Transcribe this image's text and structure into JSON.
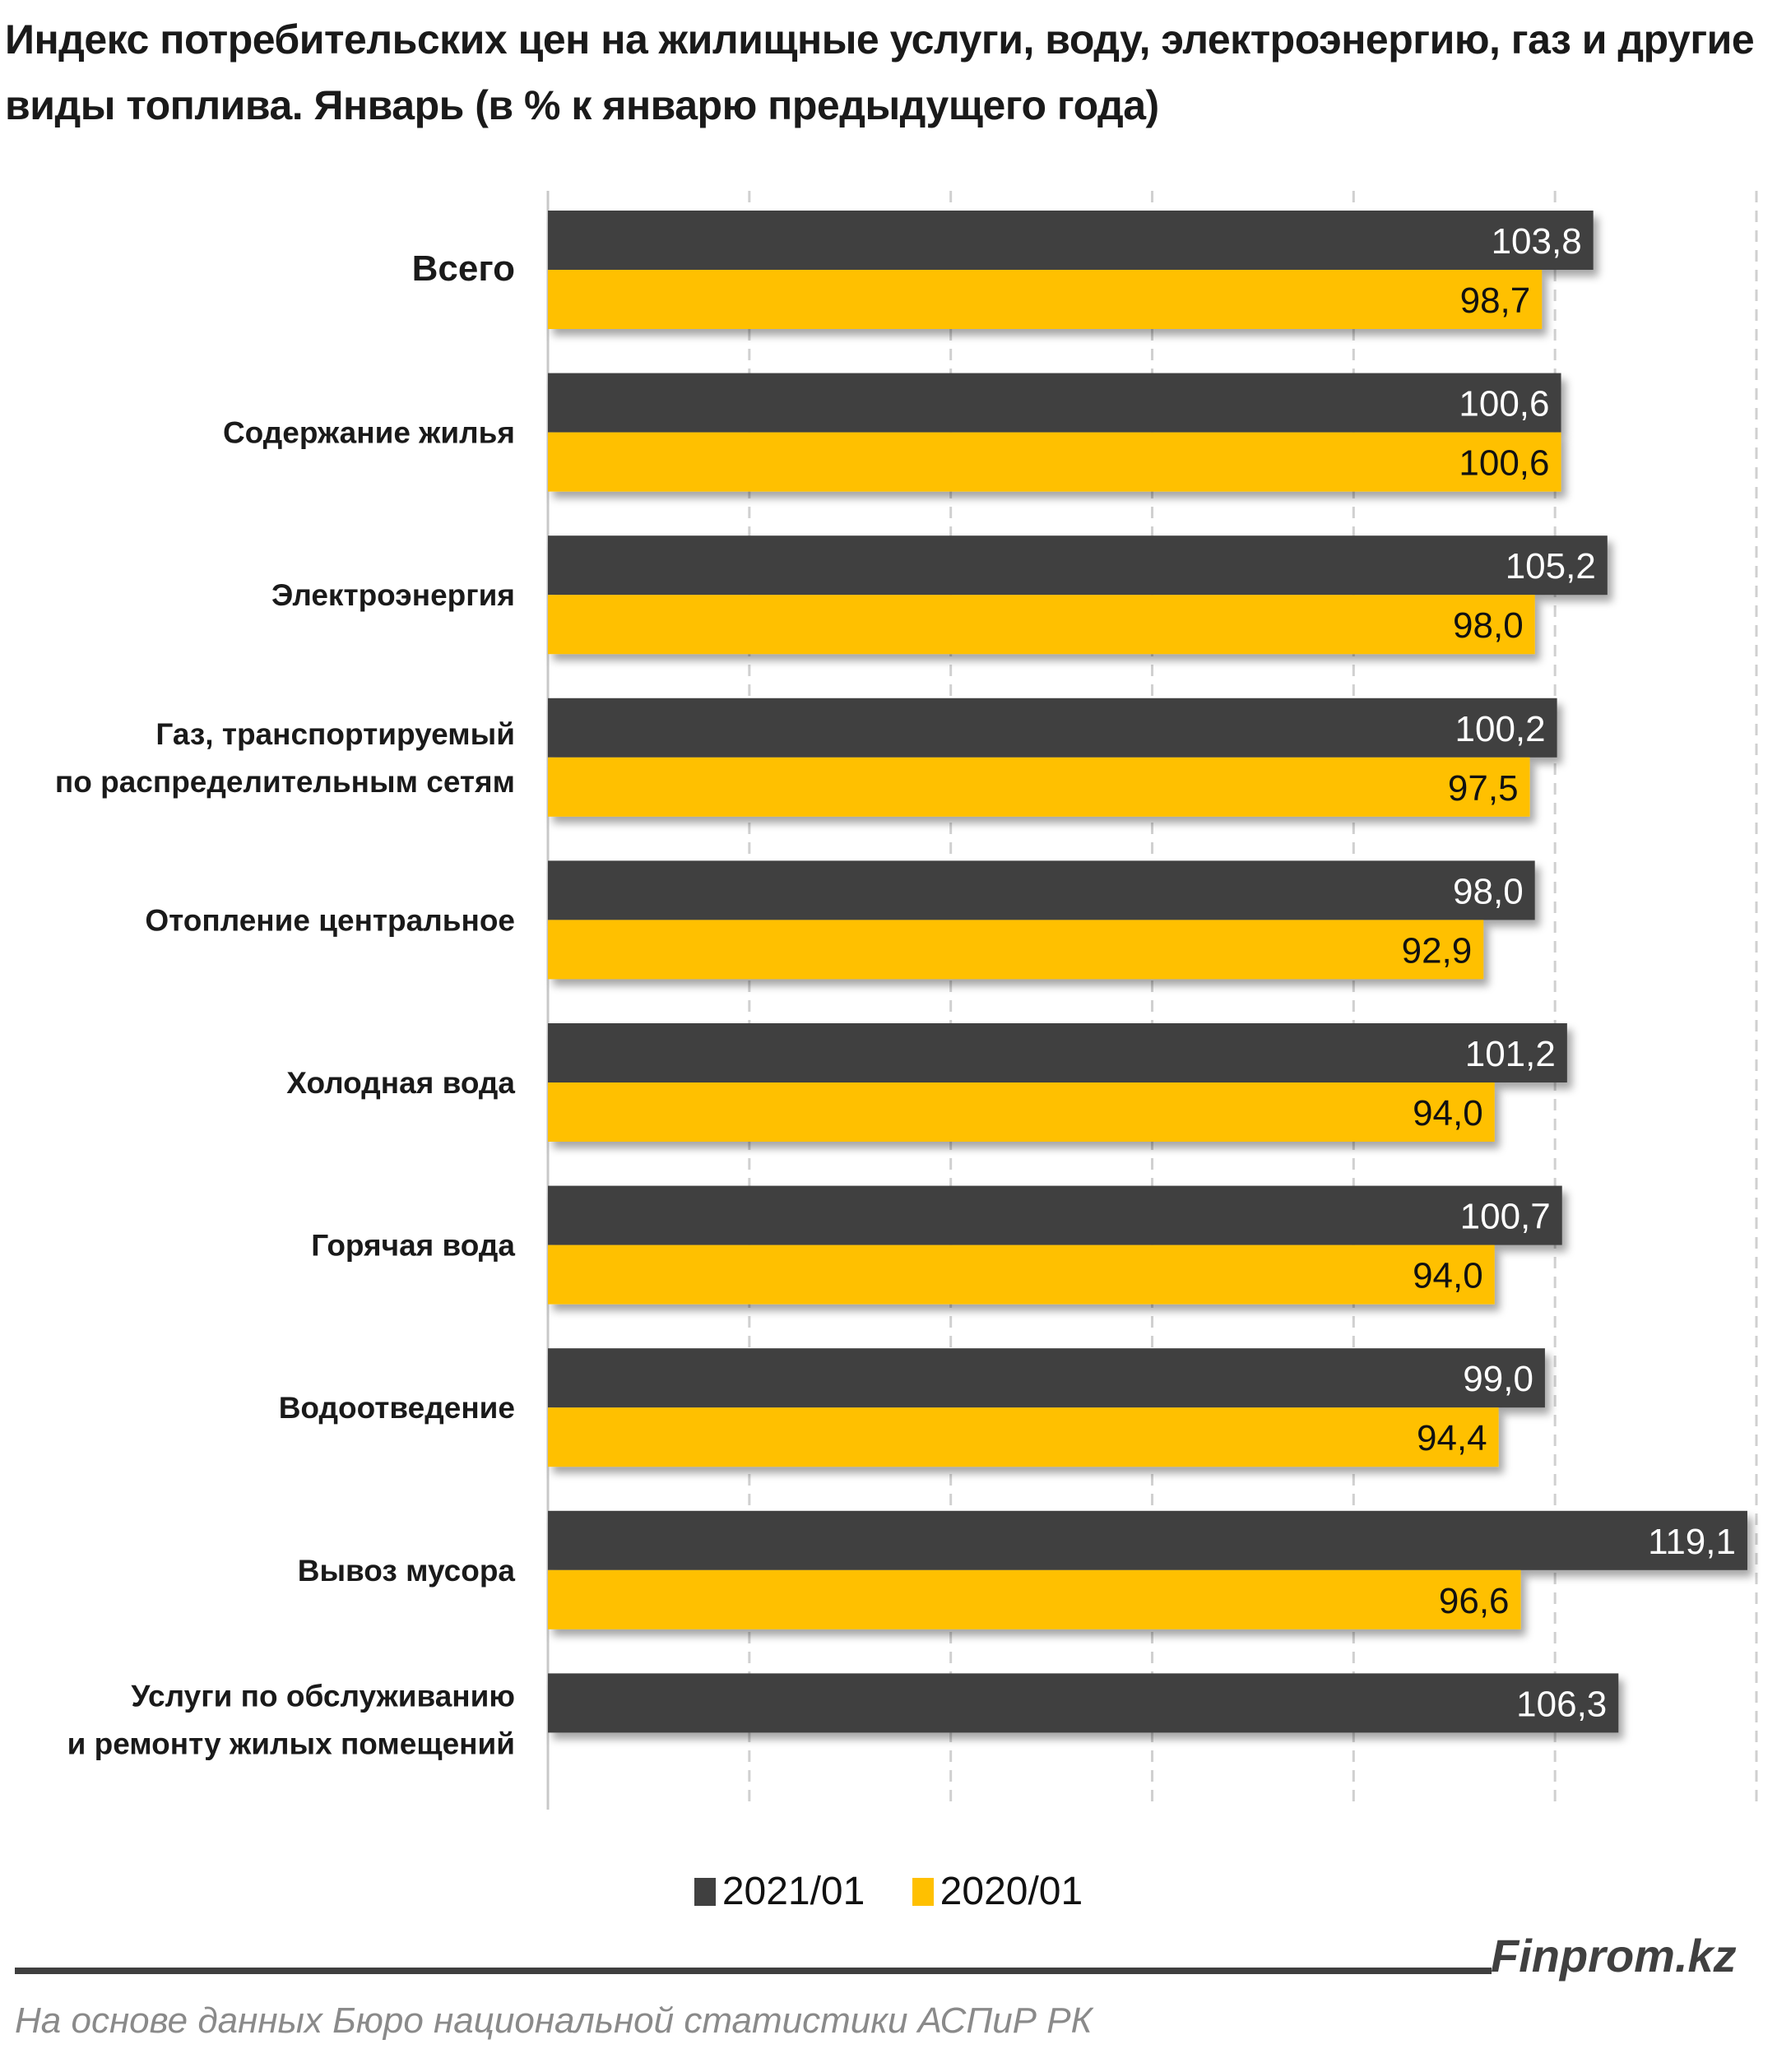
{
  "title": "Индекс потребительских цен на жилищные услуги, воду, электроэнергию, газ и другие виды топлива. Январь (в % к январю предыдущего года)",
  "chart_data": {
    "type": "bar",
    "orientation": "horizontal",
    "title": "Индекс потребительских цен на жилищные услуги, воду, электроэнергию, газ и другие виды топлива. Январь (в % к январю предыдущего года)",
    "categories": [
      "Всего",
      "Содержание жилья",
      "Электроэнергия",
      "Газ, транспортируемый по распределительным сетям",
      "Отопление центральное",
      "Холодная вода",
      "Горячая вода",
      "Водоотведение",
      "Вывоз мусора",
      "Услуги по обслуживанию и ремонту жилых помещений"
    ],
    "category_lines": [
      [
        "Всего"
      ],
      [
        "Содержание жилья"
      ],
      [
        "Электроэнергия"
      ],
      [
        "Газ, транспортируемый",
        "по распределительным сетям"
      ],
      [
        "Отопление центральное"
      ],
      [
        "Холодная вода"
      ],
      [
        "Горячая вода"
      ],
      [
        "Водоотведение"
      ],
      [
        "Вывоз мусора"
      ],
      [
        "Услуги по обслуживанию",
        "и ремонту жилых помещений"
      ]
    ],
    "series": [
      {
        "name": "2021/01",
        "color": "#404040",
        "values": [
          103.8,
          100.6,
          105.2,
          100.2,
          98.0,
          101.2,
          100.7,
          99.0,
          119.1,
          106.3
        ],
        "labels": [
          "103,8",
          "100,6",
          "105,2",
          "100,2",
          "98,0",
          "101,2",
          "100,7",
          "99,0",
          "119,1",
          "106,3"
        ]
      },
      {
        "name": "2020/01",
        "color": "#FFC000",
        "values": [
          98.7,
          100.6,
          98.0,
          97.5,
          92.9,
          94.0,
          94.0,
          94.4,
          96.6,
          null
        ],
        "labels": [
          "98,7",
          "100,6",
          "98,0",
          "97,5",
          "92,9",
          "94,0",
          "94,0",
          "94,4",
          "96,6",
          null
        ]
      }
    ],
    "xlim": [
      0,
      120
    ],
    "grid_step": 20,
    "grid": "vertical dashed",
    "tick_labels_shown": false,
    "legend_position": "bottom"
  },
  "legend": [
    {
      "label": "2021/01",
      "color": "#404040"
    },
    {
      "label": "2020/01",
      "color": "#FFC000"
    }
  ],
  "footer": {
    "brand": "Finprom.kz",
    "source": "На основе данных Бюро национальной  статистики АСПиР РК"
  }
}
